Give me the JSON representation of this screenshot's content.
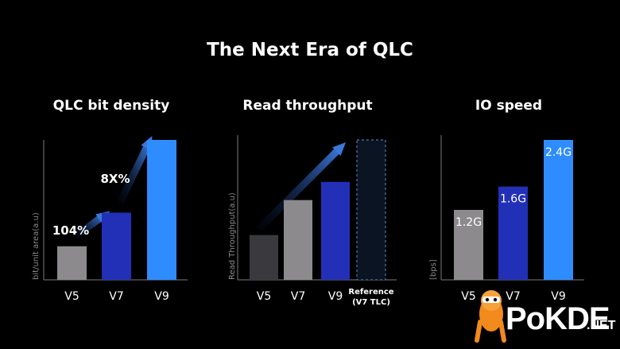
{
  "title": "The Next Era of QLC",
  "chart_data": [
    {
      "type": "bar",
      "title": "QLC bit density",
      "ylabel": "bit/unit area(a.u)",
      "categories": [
        "V5",
        "V7",
        "V9"
      ],
      "values": [
        0.24,
        0.48,
        1.0
      ],
      "annotations": [
        "104%",
        "8X%"
      ],
      "colors": [
        "#8c8a8c",
        "#2230b8",
        "#2f8cff"
      ]
    },
    {
      "type": "bar",
      "title": "Read throughput",
      "ylabel": "Read Throughput(a.u)",
      "categories": [
        "V5",
        "V7",
        "V9",
        "Reference\n(V7 TLC)"
      ],
      "values": [
        0.32,
        0.57,
        0.7,
        1.0
      ],
      "colors": [
        "#3a393d",
        "#8c8a8c",
        "#2230b8",
        "#0b1422"
      ]
    },
    {
      "type": "bar",
      "title": "IO speed",
      "ylabel": "[bps]",
      "categories": [
        "V5",
        "V7",
        "V9"
      ],
      "values": [
        1.2,
        1.6,
        2.4
      ],
      "data_labels": [
        "1.2G",
        "1.6G",
        "2.4G"
      ],
      "colors": [
        "#8c8a8c",
        "#2230b8",
        "#2f8cff"
      ]
    }
  ],
  "watermark": {
    "text": "PoKDE",
    "suffix": ".NET"
  }
}
